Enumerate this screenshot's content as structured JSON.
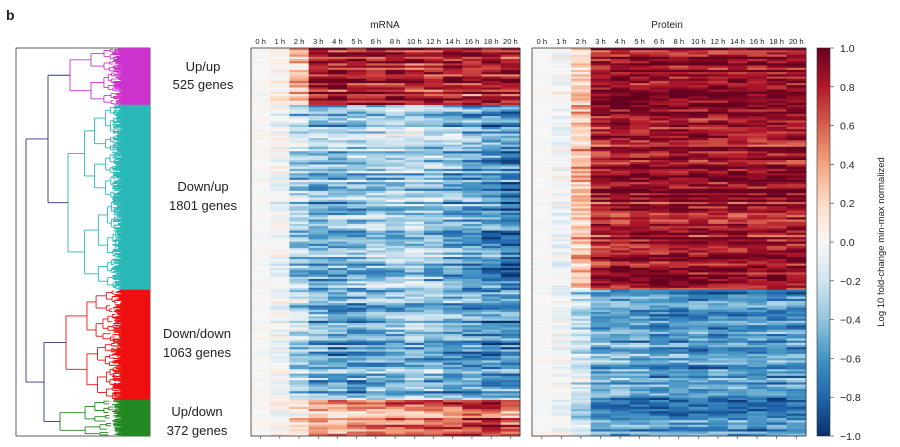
{
  "panel_label": "b",
  "colors": {
    "scale": [
      "#08306b",
      "#2166ac",
      "#4393c3",
      "#92c5de",
      "#d1e5f0",
      "#f7f7f7",
      "#fddbc7",
      "#f4a582",
      "#d6604d",
      "#b2182b",
      "#67001f"
    ],
    "clusters": [
      "#cc33cc",
      "#2ab7b7",
      "#ee1111",
      "#228822"
    ],
    "dendro_root": "#33338a"
  },
  "chart_data": [
    {
      "type": "heatmap",
      "title": "mRNA",
      "x_ticklabels": [
        "0 h",
        "1 h",
        "2 h",
        "3 h",
        "4 h",
        "5 h",
        "6 h",
        "8 h",
        "10 h",
        "12 h",
        "14 h",
        "16 h",
        "18 h",
        "20 h"
      ],
      "row_groups": [
        {
          "name": "Up/up",
          "count": "525 genes",
          "profile": [
            0.0,
            0.05,
            0.25,
            0.8,
            0.8,
            0.78,
            0.78,
            0.78,
            0.75,
            0.72,
            0.78,
            0.7,
            0.8,
            0.78
          ]
        },
        {
          "name": "Down/up",
          "count": "1801 genes",
          "profile": [
            0.0,
            -0.05,
            -0.3,
            -0.45,
            -0.45,
            -0.4,
            -0.35,
            -0.3,
            -0.3,
            -0.38,
            -0.45,
            -0.55,
            -0.6,
            -0.7
          ]
        },
        {
          "name": "Down/down",
          "count": "1063 genes",
          "profile": [
            0.0,
            -0.05,
            -0.3,
            -0.45,
            -0.55,
            -0.55,
            -0.5,
            -0.45,
            -0.4,
            -0.45,
            -0.5,
            -0.55,
            -0.6,
            -0.6
          ]
        },
        {
          "name": "Up/down",
          "count": "372 genes",
          "profile": [
            0.0,
            0.0,
            0.1,
            0.3,
            0.3,
            0.3,
            0.35,
            0.4,
            0.4,
            0.45,
            0.5,
            0.6,
            0.6,
            0.5
          ]
        }
      ]
    },
    {
      "type": "heatmap",
      "title": "Protein",
      "x_ticklabels": [
        "0 h",
        "1 h",
        "2 h",
        "3 h",
        "4 h",
        "5 h",
        "6 h",
        "8 h",
        "10 h",
        "12 h",
        "14 h",
        "16 h",
        "18 h",
        "20 h"
      ],
      "row_groups": [
        {
          "name": "Up/up",
          "count": "525 genes",
          "profile": [
            0.0,
            0.0,
            0.2,
            0.85,
            0.88,
            0.88,
            0.85,
            0.86,
            0.87,
            0.88,
            0.88,
            0.88,
            0.88,
            0.88
          ]
        },
        {
          "name": "Down/up",
          "count": "1801 genes",
          "profile": [
            0.0,
            -0.05,
            0.3,
            0.8,
            0.85,
            0.85,
            0.85,
            0.85,
            0.85,
            0.85,
            0.85,
            0.85,
            0.85,
            0.85
          ]
        },
        {
          "name": "Down/down",
          "count": "1063 genes",
          "profile": [
            0.0,
            -0.05,
            -0.2,
            -0.5,
            -0.55,
            -0.55,
            -0.6,
            -0.6,
            -0.6,
            -0.6,
            -0.6,
            -0.6,
            -0.6,
            -0.6
          ]
        },
        {
          "name": "Up/down",
          "count": "372 genes",
          "profile": [
            0.0,
            0.0,
            -0.2,
            -0.55,
            -0.6,
            -0.6,
            -0.6,
            -0.6,
            -0.6,
            -0.6,
            -0.6,
            -0.6,
            -0.6,
            -0.6
          ]
        }
      ]
    }
  ],
  "colorbar": {
    "label": "Log 10 fold-change min-max normalized",
    "ticks": [
      "1.0",
      "0.8",
      "0.6",
      "0.4",
      "0.2",
      "0.0",
      "−0.2",
      "−0.4",
      "−0.6",
      "−0.8",
      "−1.0"
    ],
    "range": [
      -1.0,
      1.0
    ]
  }
}
